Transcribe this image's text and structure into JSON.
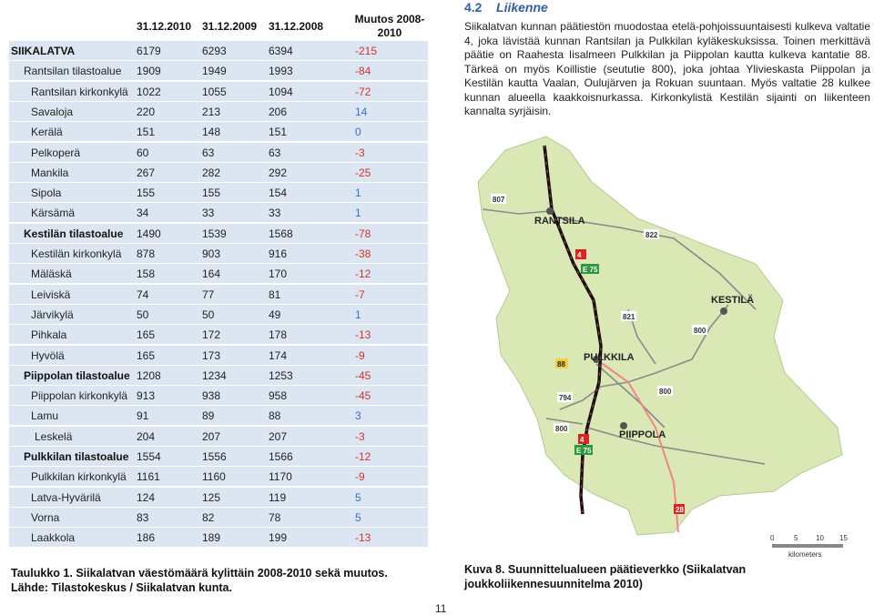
{
  "table": {
    "header": [
      "31.12.2010",
      "31.12.2009",
      "31.12.2008",
      "Muutos 2008-2010"
    ],
    "rows": [
      [
        "SIIKALATVA",
        6179,
        6293,
        6394,
        -215
      ],
      [
        "Rantsilan tilastoalue",
        1909,
        1949,
        1993,
        -84
      ],
      [
        "Rantsilan kirkonkylä",
        1022,
        1055,
        1094,
        -72
      ],
      [
        "Savaloja",
        220,
        213,
        206,
        14
      ],
      [
        "Kerälä",
        151,
        148,
        151,
        0
      ],
      [
        "Pelkoperä",
        60,
        63,
        63,
        -3
      ],
      [
        "Mankila",
        267,
        282,
        292,
        -25
      ],
      [
        "Sipola",
        155,
        155,
        154,
        1
      ],
      [
        "Kärsämä",
        34,
        33,
        33,
        1
      ],
      [
        "Kestilän tilastoalue",
        1490,
        1539,
        1568,
        -78
      ],
      [
        "Kestilän kirkonkylä",
        878,
        903,
        916,
        -38
      ],
      [
        "Mäläskä",
        158,
        164,
        170,
        -12
      ],
      [
        "Leiviskä",
        74,
        77,
        81,
        -7
      ],
      [
        "Järvikylä",
        50,
        50,
        49,
        1
      ],
      [
        "Pihkala",
        165,
        172,
        178,
        -13
      ],
      [
        "Hyvölä",
        165,
        173,
        174,
        -9
      ],
      [
        "Piippolan tilastoalue",
        1208,
        1234,
        1253,
        -45
      ],
      [
        "Piippolan kirkonkylä",
        913,
        938,
        958,
        -45
      ],
      [
        "Lamu",
        91,
        89,
        88,
        3
      ],
      [
        "Leskelä",
        204,
        207,
        207,
        -3
      ],
      [
        "Pulkkilan tilastoalue",
        1554,
        1556,
        1566,
        -12
      ],
      [
        "Pulkkilan kirkonkylä",
        1161,
        1160,
        1170,
        -9
      ],
      [
        "Latva-Hyvärilä",
        124,
        125,
        119,
        5
      ],
      [
        "Vorna",
        83,
        82,
        78,
        5
      ],
      [
        "Laakkola",
        186,
        189,
        199,
        -13
      ]
    ],
    "caption": "Taulukko 1. Siikalatvan väestömäärä kylittäin 2008-2010 sekä muutos. Lähde: Tilastokeskus / Siikalatvan kunta."
  },
  "section": {
    "number": "4.2",
    "title": "Liikenne",
    "text": "Siikalatvan kunnan päätiestön muodostaa etelä-pohjoissuuntaisesti kulkeva valtatie 4, joka lävistää kunnan Rantsilan ja Pulkkilan kyläkeskuksissa. Toinen merkittävä päätie on Raahesta Iisalmeen Pulkkilan ja Piippolan kautta kulkeva kantatie 88. Tärkeä on myös Koillistie (seututie 800), joka johtaa Ylivieskasta Piippolan ja Kestilän kautta Vaalan, Oulujärven ja Rokuan suuntaan. Myös valtatie 28 kulkee kunnan alueella kaakkoisnurkassa. Kirkonkylistä Kestilän sijainti on liikenteen kannalta syrjäisin."
  },
  "map": {
    "labels": [
      "807",
      "RANTSILA",
      "822",
      "4",
      "E 75",
      "KESTILÄ",
      "821",
      "800",
      "PULKKILA",
      "88",
      "800",
      "794",
      "800",
      "PIIPPOLA",
      "4",
      "E 75",
      "28"
    ],
    "scale": [
      "0",
      "5",
      "10",
      "15",
      "kilometers"
    ]
  },
  "figure_caption": "Kuva 8. Suunnittelualueen päätieverkko (Siikalatvan joukkoliikennesuunnitelma 2010)",
  "page_number": "11"
}
